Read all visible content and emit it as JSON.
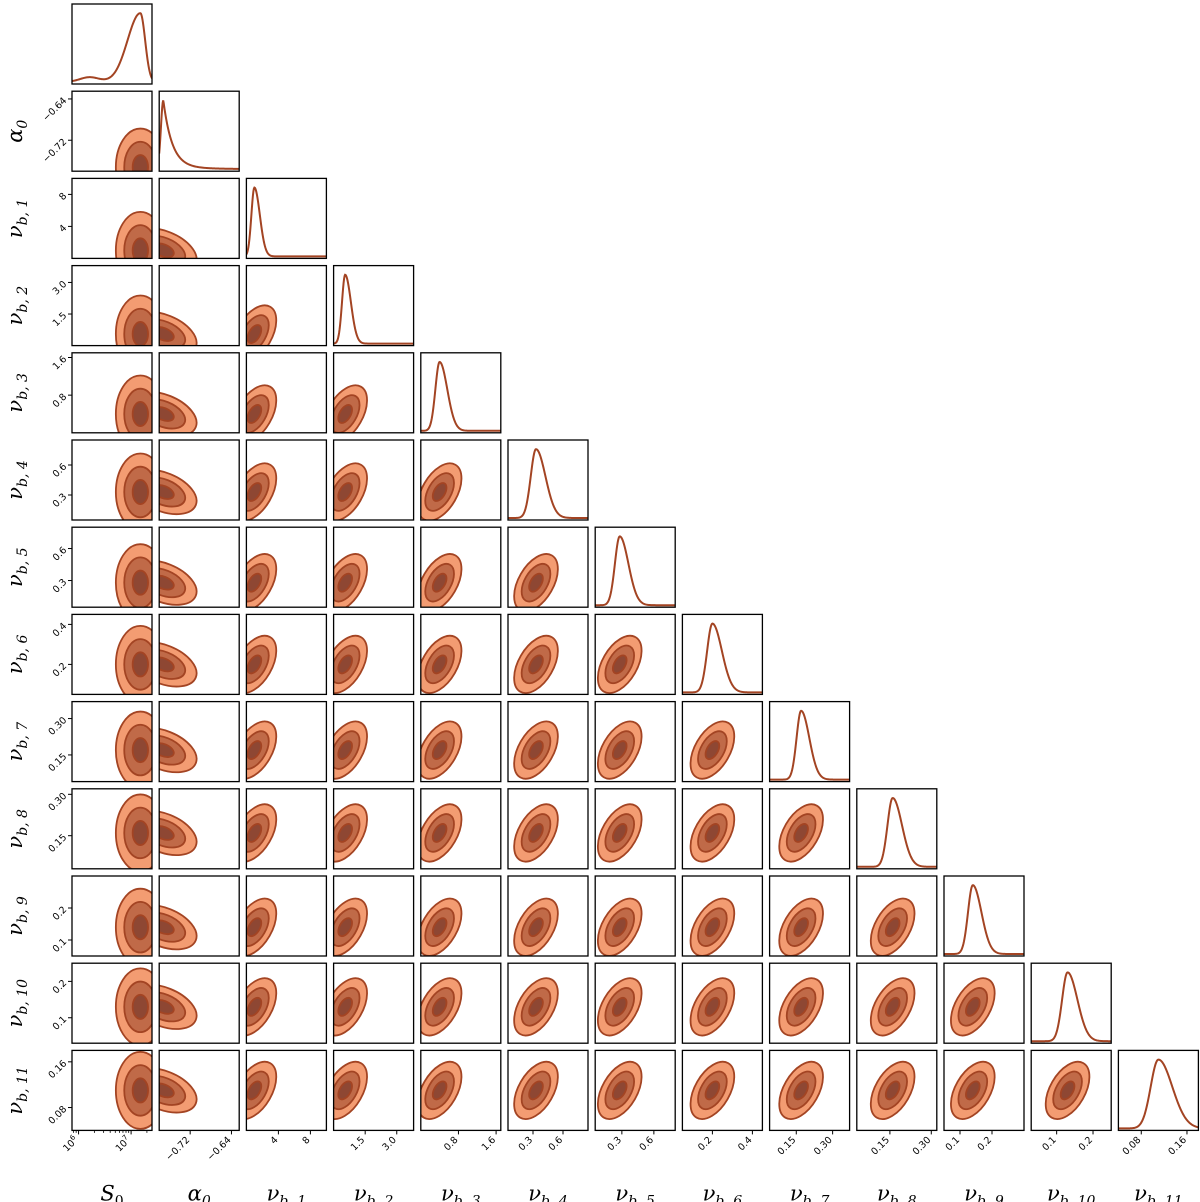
{
  "chart_data": {
    "type": "corner",
    "colors": {
      "line": "#a34423",
      "fill_outer": "#f39c72",
      "fill_mid": "#c06a48",
      "fill_inner": "#8e4733",
      "edge": "#a34423",
      "frame": "#000000"
    },
    "parameters": [
      {
        "name": "S",
        "sub": "0",
        "scale": "log",
        "range": [
          750000,
          25000000
        ],
        "ticks": [
          {
            "v": 1000000,
            "base": "10",
            "exp": "6"
          },
          {
            "v": 10000000,
            "base": "10",
            "exp": "7"
          }
        ],
        "mode": 15000000,
        "width": 5000000
      },
      {
        "name": "α",
        "sub": "0",
        "scale": "linear",
        "range": [
          -0.78,
          -0.625
        ],
        "ticks": [
          {
            "v": -0.72,
            "label": "−0.72"
          },
          {
            "v": -0.64,
            "label": "−0.64"
          }
        ],
        "mode": -0.772,
        "width": 0.012
      },
      {
        "name": "ν",
        "sub": "b, 1",
        "scale": "linear",
        "range": [
          0,
          10
        ],
        "ticks": [
          {
            "v": 4,
            "label": "4"
          },
          {
            "v": 8,
            "label": "8"
          }
        ],
        "mode": 1.0,
        "width": 0.5
      },
      {
        "name": "ν",
        "sub": "b, 2",
        "scale": "linear",
        "range": [
          0,
          3.8
        ],
        "ticks": [
          {
            "v": 1.5,
            "label": "1.5"
          },
          {
            "v": 3.0,
            "label": "3.0"
          }
        ],
        "mode": 0.55,
        "width": 0.2
      },
      {
        "name": "ν",
        "sub": "b, 3",
        "scale": "linear",
        "range": [
          0,
          1.7
        ],
        "ticks": [
          {
            "v": 0.8,
            "label": "0.8"
          },
          {
            "v": 1.6,
            "label": "1.6"
          }
        ],
        "mode": 0.4,
        "width": 0.12
      },
      {
        "name": "ν",
        "sub": "b, 4",
        "scale": "linear",
        "range": [
          0.05,
          0.85
        ],
        "ticks": [
          {
            "v": 0.3,
            "label": "0.3"
          },
          {
            "v": 0.6,
            "label": "0.6"
          }
        ],
        "mode": 0.33,
        "width": 0.07
      },
      {
        "name": "ν",
        "sub": "b, 5",
        "scale": "linear",
        "range": [
          0.05,
          0.8
        ],
        "ticks": [
          {
            "v": 0.3,
            "label": "0.3"
          },
          {
            "v": 0.6,
            "label": "0.6"
          }
        ],
        "mode": 0.28,
        "width": 0.06
      },
      {
        "name": "ν",
        "sub": "b, 6",
        "scale": "linear",
        "range": [
          0.05,
          0.45
        ],
        "ticks": [
          {
            "v": 0.2,
            "label": "0.2"
          },
          {
            "v": 0.4,
            "label": "0.4"
          }
        ],
        "mode": 0.2,
        "width": 0.035
      },
      {
        "name": "ν",
        "sub": "b, 7",
        "scale": "linear",
        "range": [
          0.04,
          0.37
        ],
        "ticks": [
          {
            "v": 0.15,
            "label": "0.15"
          },
          {
            "v": 0.3,
            "label": "0.30"
          }
        ],
        "mode": 0.17,
        "width": 0.025
      },
      {
        "name": "ν",
        "sub": "b, 8",
        "scale": "linear",
        "range": [
          0.03,
          0.32
        ],
        "ticks": [
          {
            "v": 0.15,
            "label": "0.15"
          },
          {
            "v": 0.3,
            "label": "0.30"
          }
        ],
        "mode": 0.16,
        "width": 0.025
      },
      {
        "name": "ν",
        "sub": "b, 9",
        "scale": "linear",
        "range": [
          0.05,
          0.3
        ],
        "ticks": [
          {
            "v": 0.1,
            "label": "0.1"
          },
          {
            "v": 0.2,
            "label": "0.2"
          }
        ],
        "mode": 0.14,
        "width": 0.02
      },
      {
        "name": "ν",
        "sub": "b, 10",
        "scale": "linear",
        "range": [
          0.03,
          0.25
        ],
        "ticks": [
          {
            "v": 0.1,
            "label": "0.1"
          },
          {
            "v": 0.2,
            "label": "0.2"
          }
        ],
        "mode": 0.13,
        "width": 0.02
      },
      {
        "name": "ν",
        "sub": "b, 11",
        "scale": "linear",
        "range": [
          0.04,
          0.18
        ],
        "ticks": [
          {
            "v": 0.08,
            "label": "0.08"
          },
          {
            "v": 0.16,
            "label": "0.16"
          }
        ],
        "mode": 0.11,
        "width": 0.018
      }
    ]
  }
}
